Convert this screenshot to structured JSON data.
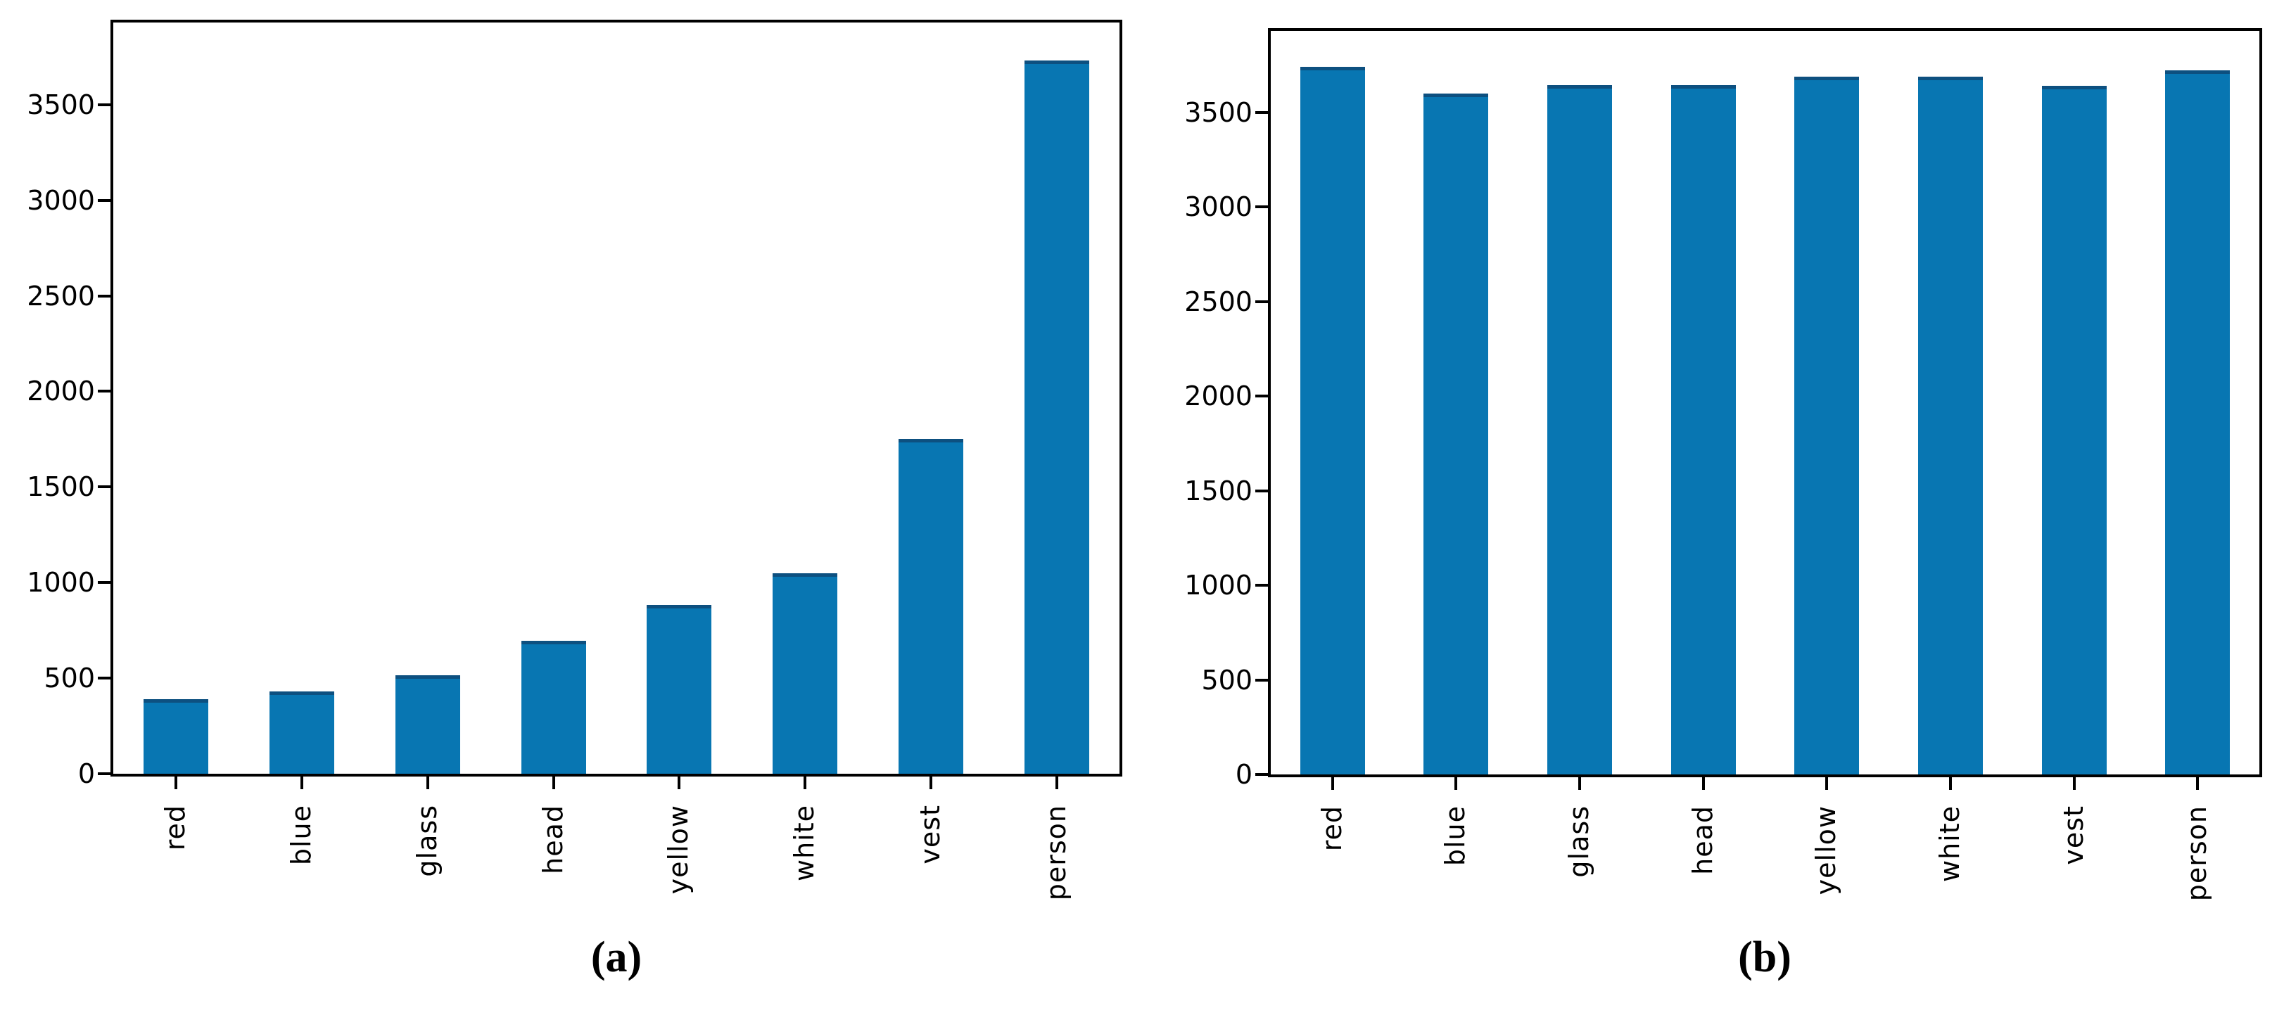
{
  "figure": {
    "background_color": "#ffffff",
    "bar_fill_color": "#0876b2",
    "bar_edge_color": "#0d5080",
    "axis_color": "#000000"
  },
  "chart_data": [
    {
      "id": "a",
      "type": "bar",
      "caption": "(a)",
      "title": "",
      "xlabel": "",
      "ylabel": "",
      "categories": [
        "red",
        "blue",
        "glass",
        "head",
        "yellow",
        "white",
        "vest",
        "person"
      ],
      "values": [
        390,
        430,
        515,
        695,
        885,
        1050,
        1750,
        3730
      ],
      "yticks": [
        0,
        500,
        1000,
        1500,
        2000,
        2500,
        3000,
        3500
      ],
      "ylim": [
        0,
        3930
      ],
      "grid": false,
      "legend_position": "none",
      "xtick_label_rotation": 90
    },
    {
      "id": "b",
      "type": "bar",
      "caption": "(b)",
      "title": "",
      "xlabel": "",
      "ylabel": "",
      "categories": [
        "red",
        "blue",
        "glass",
        "head",
        "yellow",
        "white",
        "vest",
        "person"
      ],
      "values": [
        3740,
        3600,
        3645,
        3645,
        3690,
        3690,
        3640,
        3720
      ],
      "yticks": [
        0,
        500,
        1000,
        1500,
        2000,
        2500,
        3000,
        3500
      ],
      "ylim": [
        0,
        3930
      ],
      "grid": false,
      "legend_position": "none",
      "xtick_label_rotation": 90
    }
  ]
}
